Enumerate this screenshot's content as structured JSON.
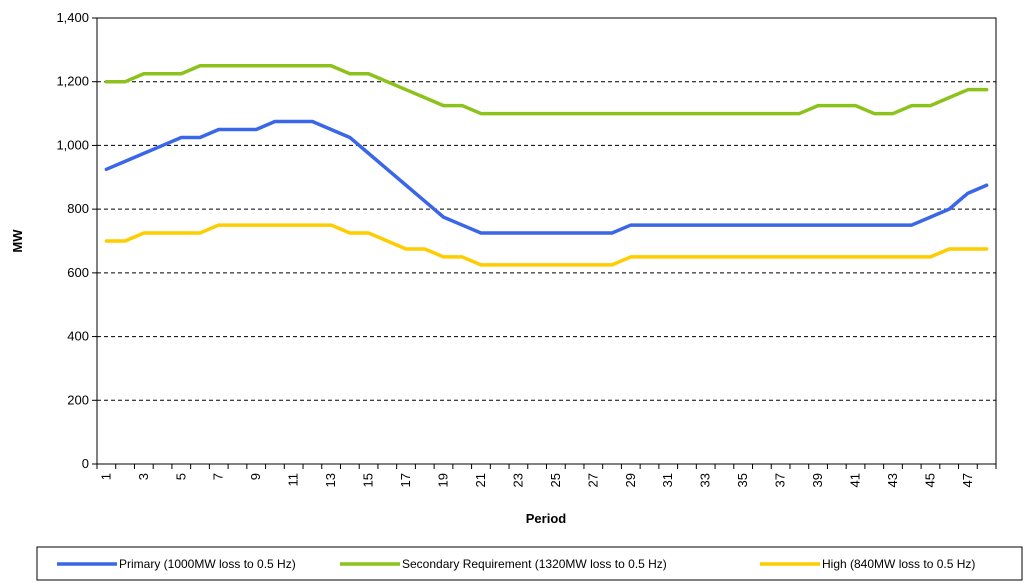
{
  "chart_data": {
    "type": "line",
    "title": "",
    "xlabel": "Period",
    "ylabel": "MW",
    "xlim": [
      1,
      48
    ],
    "ylim": [
      0,
      1400
    ],
    "yticks": [
      0,
      200,
      400,
      600,
      800,
      1000,
      1200,
      1400
    ],
    "ytick_labels": [
      "0",
      "200",
      "400",
      "600",
      "800",
      "1,000",
      "1,200",
      "1,400"
    ],
    "xtick_labels": [
      "1",
      "3",
      "5",
      "7",
      "9",
      "11",
      "13",
      "15",
      "17",
      "19",
      "21",
      "23",
      "25",
      "27",
      "29",
      "31",
      "33",
      "35",
      "37",
      "39",
      "41",
      "43",
      "45",
      "47"
    ],
    "grid": "horizontal dashed",
    "legend_position": "bottom",
    "x": [
      1,
      2,
      3,
      4,
      5,
      6,
      7,
      8,
      9,
      10,
      11,
      12,
      13,
      14,
      15,
      16,
      17,
      18,
      19,
      20,
      21,
      22,
      23,
      24,
      25,
      26,
      27,
      28,
      29,
      30,
      31,
      32,
      33,
      34,
      35,
      36,
      37,
      38,
      39,
      40,
      41,
      42,
      43,
      44,
      45,
      46,
      47,
      48
    ],
    "series": [
      {
        "name": "Primary (1000MW loss to 0.5 Hz)",
        "color": "#3a66e8",
        "values": [
          925,
          950,
          975,
          1000,
          1025,
          1025,
          1050,
          1050,
          1050,
          1075,
          1075,
          1075,
          1050,
          1025,
          975,
          925,
          875,
          825,
          775,
          750,
          725,
          725,
          725,
          725,
          725,
          725,
          725,
          725,
          750,
          750,
          750,
          750,
          750,
          750,
          750,
          750,
          750,
          750,
          750,
          750,
          750,
          750,
          750,
          750,
          775,
          800,
          850,
          875
        ]
      },
      {
        "name": "Secondary Requirement (1320MW loss to 0.5 Hz)",
        "color": "#8cc21c",
        "values": [
          1200,
          1200,
          1225,
          1225,
          1225,
          1250,
          1250,
          1250,
          1250,
          1250,
          1250,
          1250,
          1250,
          1225,
          1225,
          1200,
          1175,
          1150,
          1125,
          1125,
          1100,
          1100,
          1100,
          1100,
          1100,
          1100,
          1100,
          1100,
          1100,
          1100,
          1100,
          1100,
          1100,
          1100,
          1100,
          1100,
          1100,
          1100,
          1125,
          1125,
          1125,
          1100,
          1100,
          1125,
          1125,
          1150,
          1175,
          1175
        ]
      },
      {
        "name": "High (840MW loss to 0.5 Hz)",
        "color": "#ffcc00",
        "values": [
          700,
          700,
          725,
          725,
          725,
          725,
          750,
          750,
          750,
          750,
          750,
          750,
          750,
          725,
          725,
          700,
          675,
          675,
          650,
          650,
          625,
          625,
          625,
          625,
          625,
          625,
          625,
          625,
          650,
          650,
          650,
          650,
          650,
          650,
          650,
          650,
          650,
          650,
          650,
          650,
          650,
          650,
          650,
          650,
          650,
          675,
          675,
          675
        ]
      }
    ]
  }
}
